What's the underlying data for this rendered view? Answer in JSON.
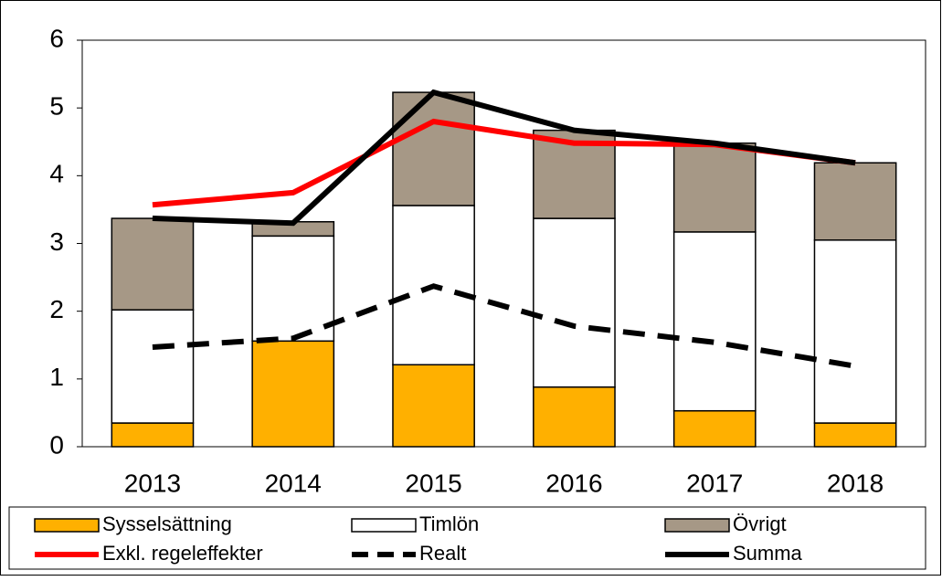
{
  "chart_data": {
    "type": "bar",
    "stacked": true,
    "categories": [
      "2013",
      "2014",
      "2015",
      "2016",
      "2017",
      "2018"
    ],
    "ylim": [
      0,
      6
    ],
    "yticks": [
      0,
      1,
      2,
      3,
      4,
      5,
      6
    ],
    "grid": false,
    "series": [
      {
        "name": "Sysselsättning",
        "kind": "bar",
        "color": "#ffb000",
        "values": [
          0.35,
          1.56,
          1.21,
          0.88,
          0.53,
          0.35
        ]
      },
      {
        "name": "Timlön",
        "kind": "bar",
        "color": "#ffffff",
        "values": [
          1.67,
          1.55,
          2.35,
          2.49,
          2.64,
          2.7
        ]
      },
      {
        "name": "Övrigt",
        "kind": "bar",
        "color": "#a69886",
        "values": [
          1.35,
          0.21,
          1.67,
          1.3,
          1.31,
          1.14
        ]
      },
      {
        "name": "Exkl. regeleffekter",
        "kind": "line",
        "color": "#ff0000",
        "dashed": false,
        "values": [
          3.57,
          3.75,
          4.8,
          4.48,
          4.46,
          4.19
        ]
      },
      {
        "name": "Realt",
        "kind": "line",
        "color": "#000000",
        "dashed": true,
        "values": [
          1.47,
          1.6,
          2.37,
          1.78,
          1.54,
          1.19
        ]
      },
      {
        "name": "Summa",
        "kind": "line",
        "color": "#000000",
        "dashed": false,
        "values": [
          3.37,
          3.3,
          5.23,
          4.67,
          4.48,
          4.19
        ]
      }
    ]
  }
}
